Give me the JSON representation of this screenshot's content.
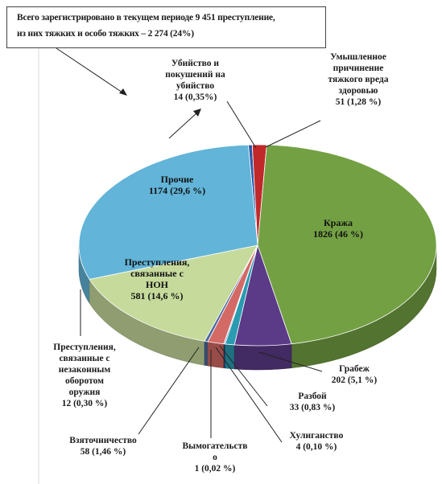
{
  "header": {
    "line1": "Всего зарегистрировано в текущем периоде 9 451 преступление,",
    "line2": "из них тяжких и особо тяжких – 2 274 (24%)"
  },
  "chart_data": {
    "type": "pie",
    "title": "",
    "slices": [
      {
        "name": "Убийство и покушений на убийство",
        "value": 14,
        "percent_label": "14 (0,35%)",
        "color": "#2a5aa8"
      },
      {
        "name": "Умышленное причинение тяжкого вреда здоровью",
        "value": 51,
        "percent_label": "51 (1,28 %)",
        "color": "#c0282a"
      },
      {
        "name": "Кража",
        "value": 1826,
        "percent_label": "1826 (46 %)",
        "color": "#73a043"
      },
      {
        "name": "Грабеж",
        "value": 202,
        "percent_label": "202 (5,1 %)",
        "color": "#5b3a88"
      },
      {
        "name": "Разбой",
        "value": 33,
        "percent_label": "33 (0,83 %)",
        "color": "#2a9bb0"
      },
      {
        "name": "Хулиганство",
        "value": 4,
        "percent_label": "4 (0,10 %)",
        "color": "#1f4f8a"
      },
      {
        "name": "Вымогательство",
        "value": 1,
        "percent_label": "1 (0,02 %)",
        "color": "#8d2a22"
      },
      {
        "name": "Взяточничество",
        "value": 58,
        "percent_label": "58 (1,46 %)",
        "color": "#d36a66"
      },
      {
        "name": "Преступления, связанные с незаконным оборотом оружия",
        "value": 12,
        "percent_label": "12 (0,30 %)",
        "color": "#4a6aa0"
      },
      {
        "name": "Преступления, связанные с НОН",
        "value": 581,
        "percent_label": "581 (14,6 %)",
        "color": "#c6da9c"
      },
      {
        "name": "Прочие",
        "value": 1174,
        "percent_label": "1174 (29,6 %)",
        "color": "#62b4d8"
      }
    ]
  },
  "labels": {
    "murder": {
      "l1": "Убийство и",
      "l2": "покушений на",
      "l3": "убийство",
      "l4": "14 (0,35%)"
    },
    "harm": {
      "l1": "Умышленное",
      "l2": "причинение",
      "l3": "тяжкого вреда",
      "l4": "здоровью",
      "l5": "51 (1,28 %)"
    },
    "theft": {
      "l1": "Кража",
      "l2": "1826 (46 %)"
    },
    "robbery": {
      "l1": "Грабеж",
      "l2": "202 (5,1 %)"
    },
    "assault": {
      "l1": "Разбой",
      "l2": "33 (0,83 %)"
    },
    "hooligan": {
      "l1": "Хулиганство",
      "l2": "4 (0,10 %)"
    },
    "extortion": {
      "l1": "Вымогательств",
      "l2": "о",
      "l3": "1 (0,02 %)"
    },
    "bribery": {
      "l1": "Взяточничество",
      "l2": "58 (1,46 %)"
    },
    "weapons": {
      "l1": "Преступления,",
      "l2": "связанные с",
      "l3": "незаконным",
      "l4": "оборотом",
      "l5": "оружия",
      "l6": "12 (0,30 %)"
    },
    "drugs": {
      "l1": "Преступления,",
      "l2": "связанные с",
      "l3": "НОН",
      "l4": "581 (14,6  %)"
    },
    "other": {
      "l1": "Прочие",
      "l2": "1174 (29,6  %)"
    }
  }
}
